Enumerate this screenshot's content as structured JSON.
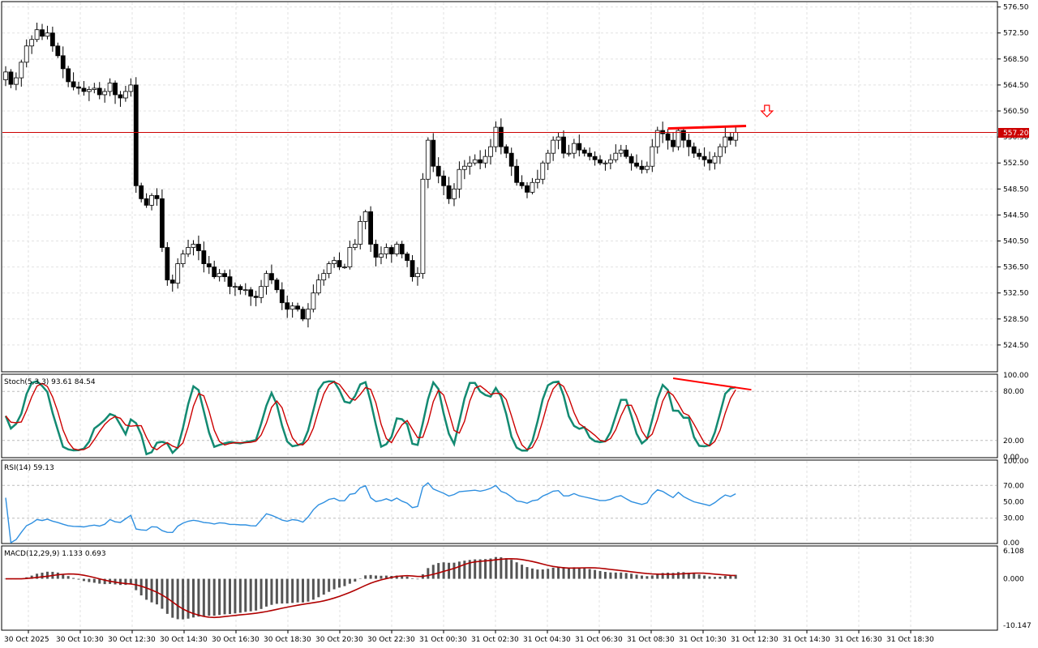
{
  "chart_data": [
    {
      "type": "candlestick",
      "title": "",
      "ylim": [
        520.5,
        577.2
      ],
      "y_ticks": [
        "576.50",
        "572.50",
        "568.50",
        "564.50",
        "560.50",
        "556.50",
        "552.50",
        "548.50",
        "544.50",
        "540.50",
        "536.50",
        "532.50",
        "528.50",
        "524.50"
      ],
      "current_price": 557.2,
      "current_price_label": "557.20",
      "close": [
        566.5,
        564.6,
        565.6,
        568.0,
        570.5,
        571.5,
        573.0,
        572.0,
        572.5,
        570.5,
        569.0,
        567.0,
        565.0,
        564.2,
        564.0,
        563.5,
        563.8,
        564.0,
        563.0,
        563.5,
        564.8,
        563.0,
        562.5,
        563.5,
        564.5,
        549.0,
        547.0,
        546.0,
        547.5,
        547.0,
        539.5,
        534.5,
        534.0,
        537.0,
        538.5,
        539.5,
        540.0,
        539.0,
        537.0,
        536.5,
        535.0,
        535.5,
        535.0,
        533.5,
        533.5,
        533.0,
        533.0,
        532.0,
        531.8,
        533.5,
        535.5,
        534.5,
        533.0,
        531.0,
        530.0,
        530.5,
        530.0,
        528.5,
        530.0,
        532.5,
        534.5,
        535.5,
        537.0,
        537.5,
        536.5,
        536.5,
        539.5,
        540.0,
        543.5,
        545.0,
        540.0,
        538.0,
        538.5,
        539.5,
        538.5,
        540.0,
        538.5,
        537.5,
        535.0,
        535.5,
        550.0,
        556.0,
        552.0,
        550.5,
        549.0,
        547.0,
        548.5,
        551.5,
        552.0,
        552.5,
        553.0,
        552.5,
        553.5,
        555.0,
        558.0,
        555.0,
        554.0,
        552.0,
        549.5,
        549.0,
        548.0,
        549.5,
        550.0,
        552.5,
        554.0,
        556.0,
        556.5,
        554.0,
        554.0,
        555.5,
        554.5,
        554.0,
        553.5,
        553.0,
        552.5,
        552.5,
        553.0,
        554.0,
        554.5,
        553.5,
        552.5,
        552.0,
        551.5,
        552.0,
        555.0,
        557.5,
        557.0,
        556.0,
        555.0,
        557.5,
        556.0,
        555.0,
        554.0,
        553.5,
        553.0,
        552.5,
        553.5,
        555.0,
        556.5,
        556.0,
        557.2
      ],
      "stoch": {
        "label": "Stoch(5,3,3) 93.61 84.54",
        "k": 93.61,
        "d": 84.54,
        "ticks": [
          "100.00",
          "80.00",
          "20.00",
          "0.00"
        ],
        "ylim": [
          0,
          100
        ]
      },
      "rsi": {
        "label": "RSI(14) 59.13",
        "value": 59.13,
        "ticks": [
          "100.00",
          "70.00",
          "50.00",
          "30.00",
          "0.00"
        ],
        "ylim": [
          0,
          100
        ]
      },
      "macd": {
        "label": "MACD(12,29,9) 1.133 0.693",
        "main": 1.133,
        "signal": 0.693,
        "ticks": [
          "6.108",
          "0.000",
          "-10.147"
        ],
        "ylim": [
          -10.147,
          6.108
        ]
      },
      "x_labels": [
        "30 Oct 2025",
        "30 Oct 10:30",
        "30 Oct 12:30",
        "30 Oct 14:30",
        "30 Oct 16:30",
        "30 Oct 18:30",
        "30 Oct 20:30",
        "30 Oct 22:30",
        "31 Oct 00:30",
        "31 Oct 02:30",
        "31 Oct 04:30",
        "31 Oct 06:30",
        "31 Oct 08:30",
        "31 Oct 10:30",
        "31 Oct 12:30",
        "31 Oct 14:30",
        "31 Oct 16:30",
        "31 Oct 18:30"
      ],
      "annotations": [
        {
          "type": "horizontal-line",
          "name": "current-price-line",
          "price": 557.2,
          "color": "#cc0000"
        },
        {
          "type": "arrow-down",
          "name": "sell-arrow",
          "color": "#ff0000"
        },
        {
          "type": "trendline",
          "name": "price-resistance-trendline",
          "color": "#ff0000"
        },
        {
          "type": "trendline",
          "name": "stoch-divergence-trendline",
          "color": "#ff0000"
        }
      ],
      "colors": {
        "bull_fill": "#ffffff",
        "bear_fill": "#000000",
        "stoch_k": "#138a72",
        "stoch_d": "#cc0000",
        "rsi": "#2e8fe0",
        "macd_hist": "#555555",
        "macd_signal": "#b00000",
        "annotation": "#ff0000"
      }
    }
  ]
}
